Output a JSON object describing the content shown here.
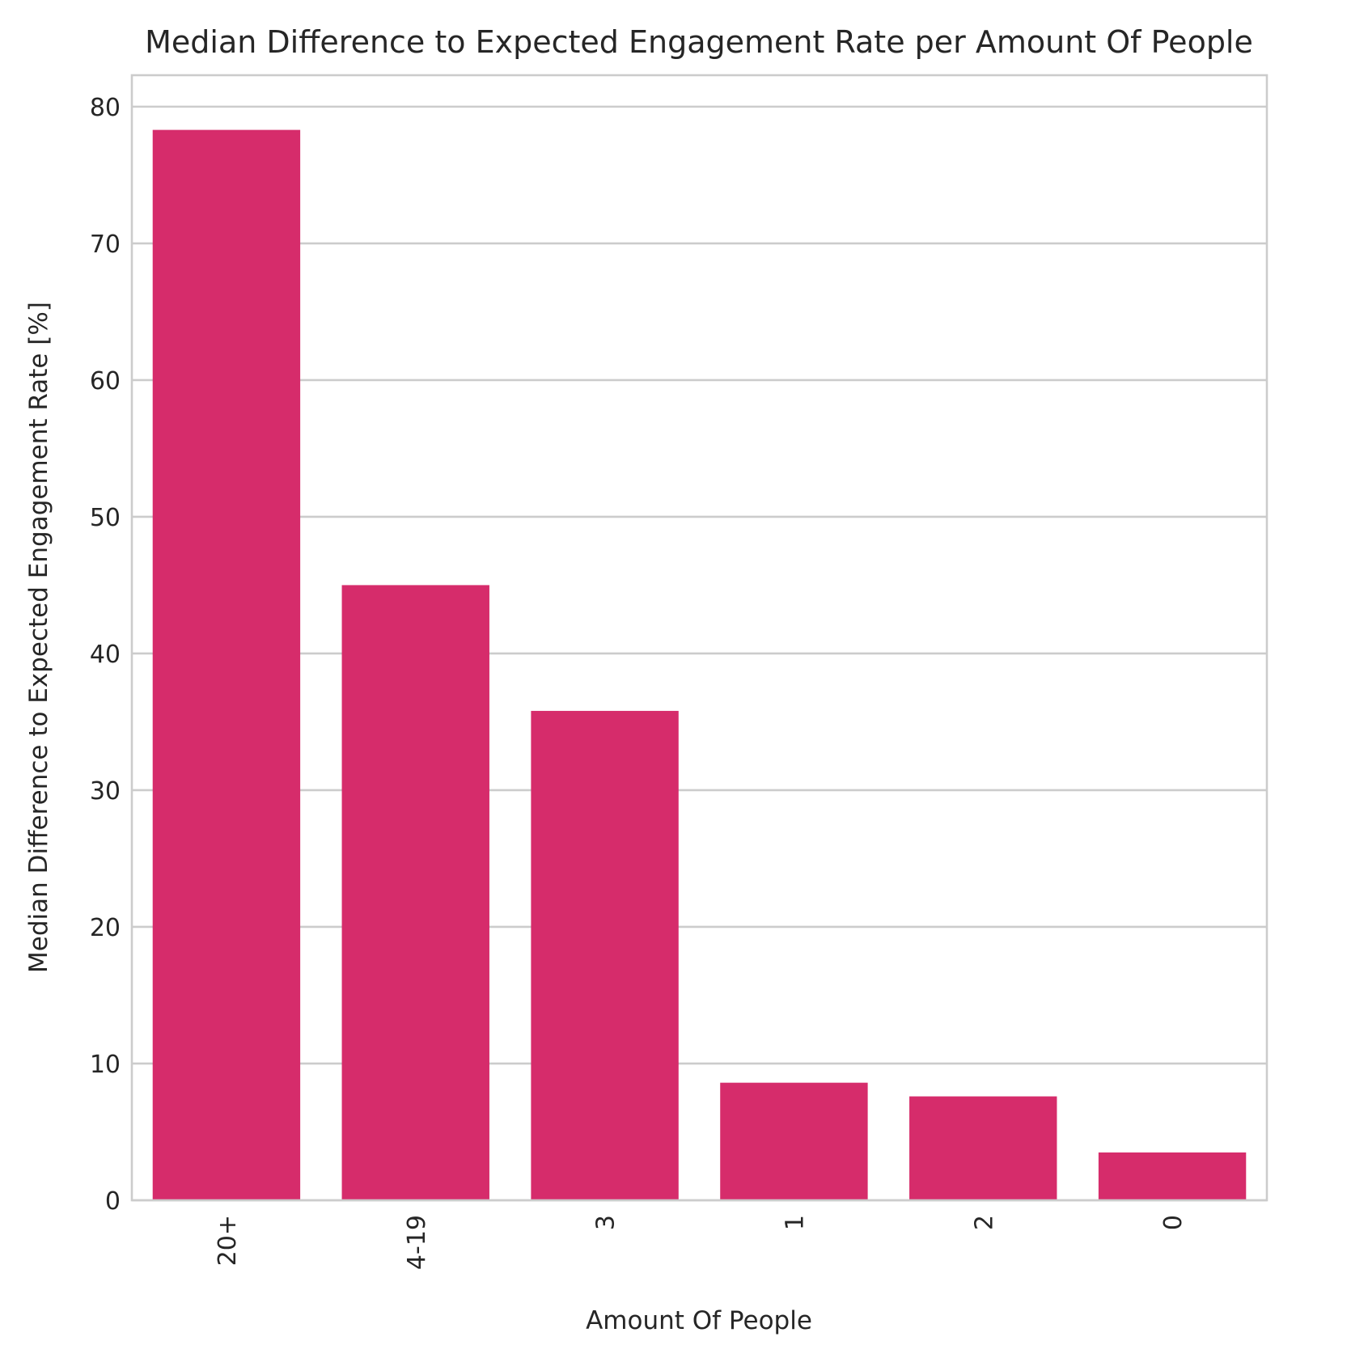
{
  "chart_data": {
    "type": "bar",
    "title": "Median Difference to Expected Engagement Rate per Amount Of People",
    "xlabel": "Amount Of People",
    "ylabel": "Median Difference to Expected Engagement Rate [%]",
    "categories": [
      "20+",
      "4-19",
      "3",
      "1",
      "2",
      "0"
    ],
    "values": [
      78.3,
      45.0,
      35.8,
      8.6,
      7.6,
      3.5
    ],
    "ylim": [
      0,
      82.3
    ],
    "yticks": [
      0,
      10,
      20,
      30,
      40,
      50,
      60,
      70,
      80
    ],
    "grid": true,
    "xtick_rotation": 90,
    "bar_color": "#d62c6b",
    "grid_color": "#cccccc",
    "text_color": "#262626"
  }
}
